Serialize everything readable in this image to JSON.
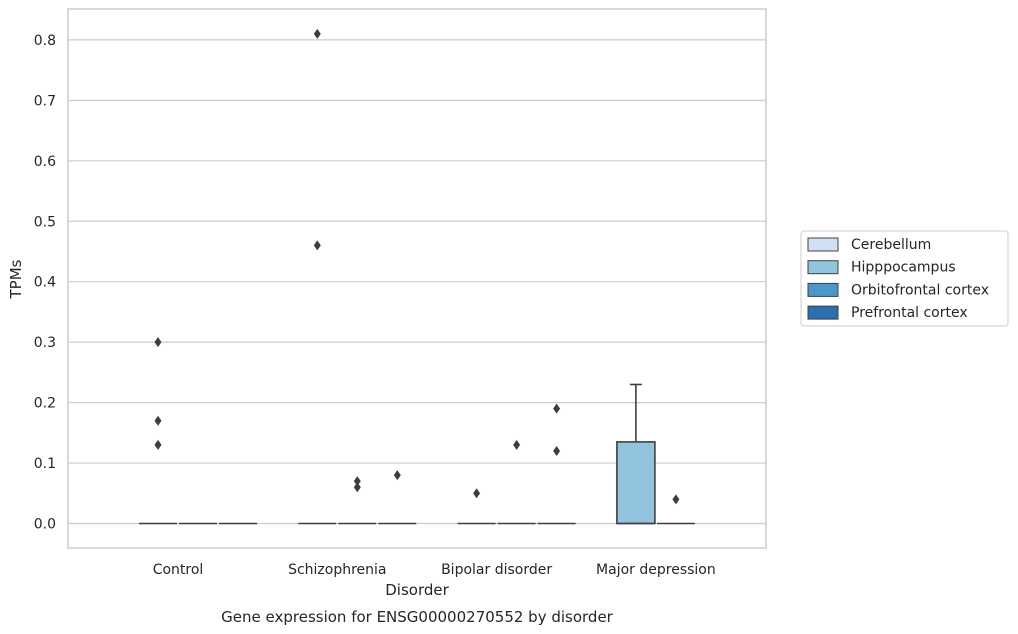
{
  "chart_data": {
    "type": "box",
    "caption": "Gene expression for ENSG00000270552 by disorder",
    "xlabel": "Disorder",
    "ylabel": "TPMs",
    "ylim": [
      -0.04,
      0.85
    ],
    "yticks": [
      0.0,
      0.1,
      0.2,
      0.3,
      0.4,
      0.5,
      0.6,
      0.7,
      0.8
    ],
    "ytick_labels": [
      "0.0",
      "0.1",
      "0.2",
      "0.3",
      "0.4",
      "0.5",
      "0.6",
      "0.7",
      "0.8"
    ],
    "grid": true,
    "legend_position": "right",
    "categories": [
      "Control",
      "Schizophrenia",
      "Bipolar disorder",
      "Major depression"
    ],
    "series": [
      {
        "name": "Cerebellum",
        "color": "#cfe1f2",
        "boxes": [
          null,
          null,
          null,
          null
        ],
        "outliers": [
          [],
          [],
          [],
          []
        ]
      },
      {
        "name": "Hipppocampus",
        "color": "#93c4de",
        "boxes": [
          {
            "min": 0.0,
            "q1": 0.0,
            "median": 0.0,
            "q3": 0.0,
            "max": 0.0
          },
          {
            "min": 0.0,
            "q1": 0.0,
            "median": 0.0,
            "q3": 0.0,
            "max": 0.0
          },
          {
            "min": 0.0,
            "q1": 0.0,
            "median": 0.0,
            "q3": 0.0,
            "max": 0.0
          },
          {
            "min": 0.0,
            "q1": 0.0,
            "median": 0.0,
            "q3": 0.135,
            "max": 0.23
          }
        ],
        "outliers": [
          [
            0.3,
            0.17,
            0.13
          ],
          [
            0.81,
            0.46
          ],
          [
            0.05
          ],
          []
        ]
      },
      {
        "name": "Orbitofrontal cortex",
        "color": "#4a98c9",
        "boxes": [
          {
            "min": 0.0,
            "q1": 0.0,
            "median": 0.0,
            "q3": 0.0,
            "max": 0.0
          },
          {
            "min": 0.0,
            "q1": 0.0,
            "median": 0.0,
            "q3": 0.0,
            "max": 0.0
          },
          {
            "min": 0.0,
            "q1": 0.0,
            "median": 0.0,
            "q3": 0.0,
            "max": 0.0
          },
          {
            "min": 0.0,
            "q1": 0.0,
            "median": 0.0,
            "q3": 0.0,
            "max": 0.0
          }
        ],
        "outliers": [
          [],
          [
            0.07,
            0.06
          ],
          [
            0.13
          ],
          [
            0.04
          ]
        ]
      },
      {
        "name": "Prefrontal cortex",
        "color": "#2a70b1",
        "boxes": [
          {
            "min": 0.0,
            "q1": 0.0,
            "median": 0.0,
            "q3": 0.0,
            "max": 0.0
          },
          {
            "min": 0.0,
            "q1": 0.0,
            "median": 0.0,
            "q3": 0.0,
            "max": 0.0
          },
          {
            "min": 0.0,
            "q1": 0.0,
            "median": 0.0,
            "q3": 0.0,
            "max": 0.0
          },
          null
        ],
        "outliers": [
          [],
          [
            0.08
          ],
          [
            0.19,
            0.12
          ],
          []
        ]
      }
    ]
  }
}
